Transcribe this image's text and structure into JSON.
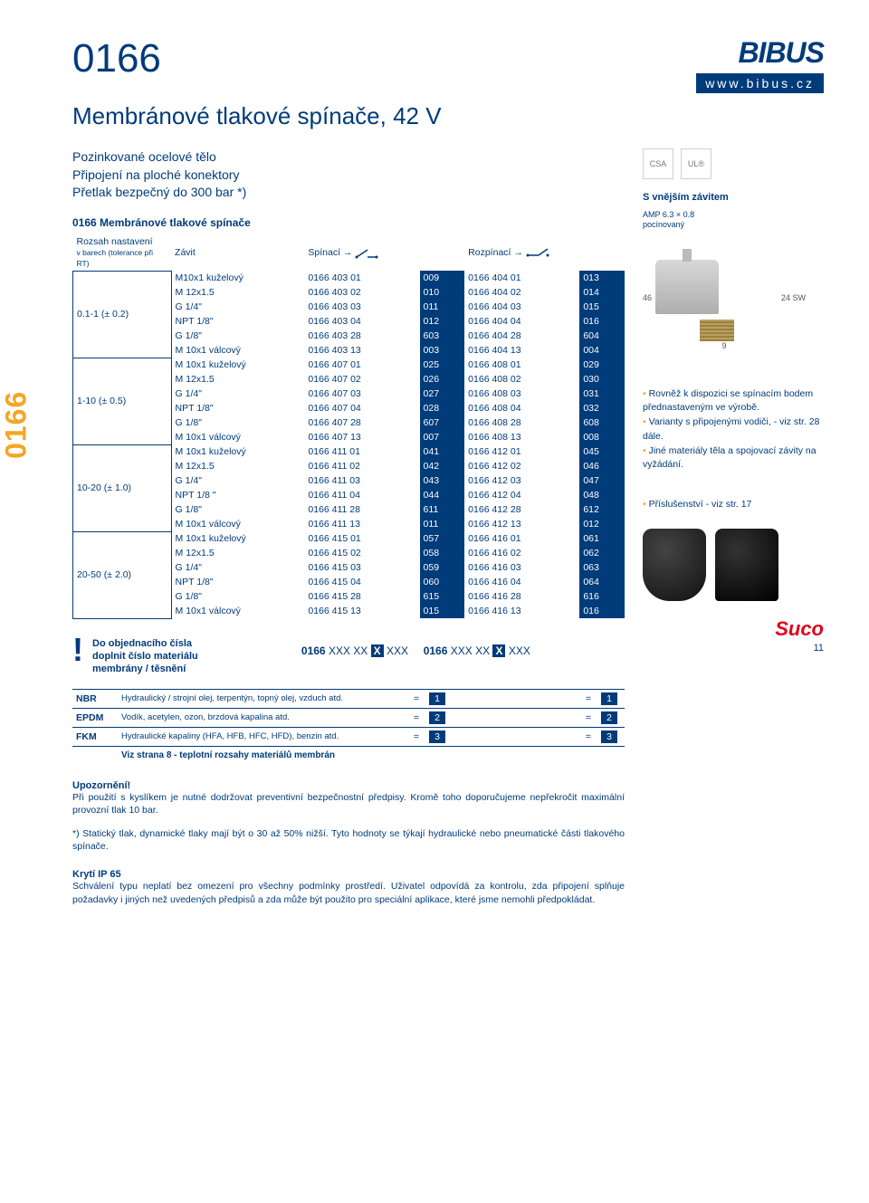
{
  "side_label": "0166",
  "header": {
    "product_number": "0166",
    "logo": "BIBUS",
    "url": "www.bibus.cz",
    "title": "Membránové tlakové spínače, 42 V"
  },
  "spec_lines": [
    "Pozinkované ocelové tělo",
    "Připojení na ploché konektory",
    "Přetlak bezpečný do 300 bar *)"
  ],
  "table_title": "0166 Membránové tlakové spínače",
  "col_headers": {
    "range": "Rozsah nastavení",
    "range_sub": "v barech (tolerance při RT)",
    "thread": "Závit",
    "closing": "Spínací",
    "opening": "Rozpínací"
  },
  "groups": [
    {
      "range": "0.1-1 (± 0.2)",
      "rows": [
        {
          "thread": "M10x1 kuželový",
          "c1": "0166 403 01",
          "v1": "009",
          "c2": "0166 404 01",
          "v2": "013"
        },
        {
          "thread": "M 12x1.5",
          "c1": "0166 403 02",
          "v1": "010",
          "c2": "0166 404 02",
          "v2": "014"
        },
        {
          "thread": "G 1/4\"",
          "c1": "0166 403 03",
          "v1": "011",
          "c2": "0166 404 03",
          "v2": "015"
        },
        {
          "thread": "NPT 1/8\"",
          "c1": "0166 403 04",
          "v1": "012",
          "c2": "0166 404 04",
          "v2": "016"
        },
        {
          "thread": "G 1/8\"",
          "c1": "0166 403 28",
          "v1": "603",
          "c2": "0166 404 28",
          "v2": "604"
        },
        {
          "thread": "M 10x1 válcový",
          "c1": "0166 403 13",
          "v1": "003",
          "c2": "0166 404 13",
          "v2": "004"
        }
      ]
    },
    {
      "range": "1-10 (± 0.5)",
      "rows": [
        {
          "thread": "M 10x1 kuželový",
          "c1": "0166 407 01",
          "v1": "025",
          "c2": "0166 408 01",
          "v2": "029"
        },
        {
          "thread": "M 12x1.5",
          "c1": "0166 407 02",
          "v1": "026",
          "c2": "0166 408 02",
          "v2": "030"
        },
        {
          "thread": "G 1/4\"",
          "c1": "0166 407 03",
          "v1": "027",
          "c2": "0166 408 03",
          "v2": "031"
        },
        {
          "thread": "NPT 1/8\"",
          "c1": "0166 407 04",
          "v1": "028",
          "c2": "0166 408 04",
          "v2": "032"
        },
        {
          "thread": "G 1/8\"",
          "c1": "0166 407 28",
          "v1": "607",
          "c2": "0166 408 28",
          "v2": "608"
        },
        {
          "thread": "M 10x1 válcový",
          "c1": "0166 407 13",
          "v1": "007",
          "c2": "0166 408 13",
          "v2": "008"
        }
      ]
    },
    {
      "range": "10-20 (± 1.0)",
      "rows": [
        {
          "thread": "M 10x1 kuželový",
          "c1": "0166 411 01",
          "v1": "041",
          "c2": "0166 412 01",
          "v2": "045"
        },
        {
          "thread": "M 12x1.5",
          "c1": "0166 411 02",
          "v1": "042",
          "c2": "0166 412 02",
          "v2": "046"
        },
        {
          "thread": "G 1/4\"",
          "c1": "0166 411 03",
          "v1": "043",
          "c2": "0166 412 03",
          "v2": "047"
        },
        {
          "thread": "NPT 1/8 \"",
          "c1": "0166 411 04",
          "v1": "044",
          "c2": "0166 412 04",
          "v2": "048"
        },
        {
          "thread": "G 1/8\"",
          "c1": "0166 411 28",
          "v1": "611",
          "c2": "0166 412 28",
          "v2": "612"
        },
        {
          "thread": "M 10x1 válcový",
          "c1": "0166 411 13",
          "v1": "011",
          "c2": "0166 412 13",
          "v2": "012"
        }
      ]
    },
    {
      "range": "20-50 (± 2.0)",
      "rows": [
        {
          "thread": "M 10x1 kuželový",
          "c1": "0166 415 01",
          "v1": "057",
          "c2": "0166 416 01",
          "v2": "061"
        },
        {
          "thread": "M 12x1.5",
          "c1": "0166 415 02",
          "v1": "058",
          "c2": "0166 416 02",
          "v2": "062"
        },
        {
          "thread": "G 1/4\"",
          "c1": "0166 415 03",
          "v1": "059",
          "c2": "0166 416 03",
          "v2": "063"
        },
        {
          "thread": "NPT 1/8\"",
          "c1": "0166 415 04",
          "v1": "060",
          "c2": "0166 416 04",
          "v2": "064"
        },
        {
          "thread": "G 1/8\"",
          "c1": "0166 415 28",
          "v1": "615",
          "c2": "0166 416 28",
          "v2": "616"
        },
        {
          "thread": "M 10x1 válcový",
          "c1": "0166 415 13",
          "v1": "015",
          "c2": "0166 416 13",
          "v2": "016"
        }
      ]
    }
  ],
  "order_note": {
    "line1": "Do objednacího čísla",
    "line2": "doplnit číslo materiálu",
    "line3": "membrány / těsnění",
    "pattern_prefix": "0166",
    "pattern_mid": "XXX XX",
    "pattern_suffix": "XXX"
  },
  "materials": {
    "rows": [
      {
        "code": "NBR",
        "desc": "Hydraulický / strojní olej, terpentýn, topný olej, vzduch atd.",
        "n": "1"
      },
      {
        "code": "EPDM",
        "desc": "Vodík, acetylen, ozon, brzdová kapalina atd.",
        "n": "2"
      },
      {
        "code": "FKM",
        "desc": "Hydraulické kapaliny (HFA, HFB, HFC, HFD), benzin atd.",
        "n": "3"
      }
    ],
    "footer": "Viz strana 8 - teplotní rozsahy materiálů membrán"
  },
  "warning": {
    "head": "Upozornění!",
    "body": "Při použití s kyslíkem je nutné dodržovat preventivní bezpečnostní předpisy. Kromě toho doporučujeme nepřekročit maximální provozní tlak 10 bar."
  },
  "footnote": "*) Statický tlak, dynamické tlaky mají být o 30 až 50% nižší. Tyto hodnoty se týkají hydraulické nebo pneumatické části tlakového spínače.",
  "ip": {
    "head": "Krytí IP 65",
    "body": "Schválení typu neplatí bez omezení pro všechny podmínky prostředí. Uživatel odpovídá za kontrolu, zda připojení splňuje požadavky i jiných než uvedených předpisů a zda může být použito pro speciální aplikace, které jsme nemohli předpokládat."
  },
  "right": {
    "thread_head": "S vnějším závitem",
    "amp": "AMP 6.3 × 0.8",
    "plated": "pocínovaný",
    "dim_h": "46",
    "dim_sw": "24 SW",
    "dim_thread": "9",
    "bullets": [
      "Rovněž k dispozici se spínacím bodem přednastaveným ve výrobě.",
      "Varianty s připojenými vodiči, - viz str. 28 dále.",
      "Jiné materiály těla a spojovací závity na vyžádání."
    ],
    "accessory": "Příslušenství - viz str. 17",
    "brand": "Suco",
    "page": "11"
  },
  "colors": {
    "primary": "#003b7a",
    "accent": "#f5a623",
    "red": "#e2001a"
  }
}
